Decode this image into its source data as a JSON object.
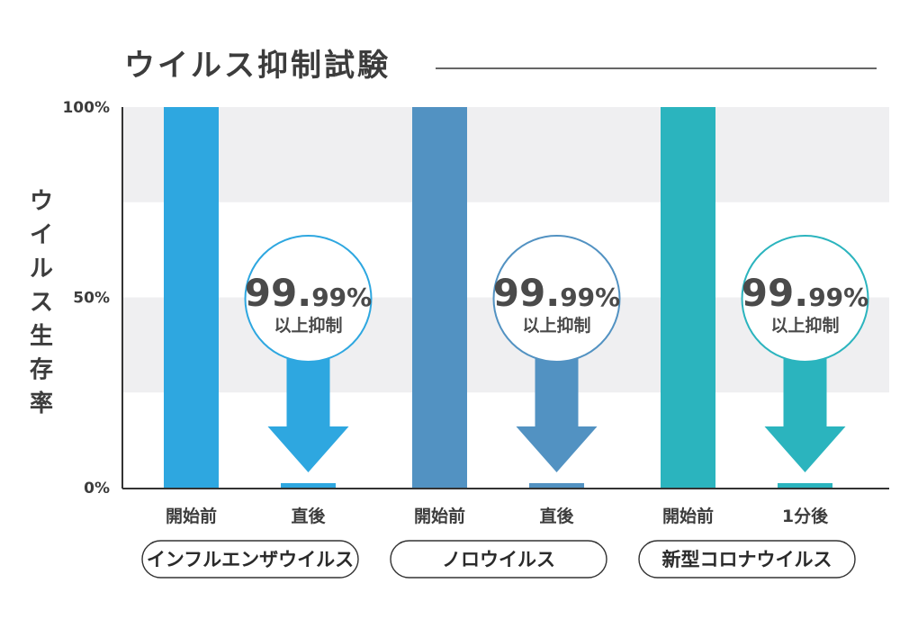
{
  "chart_data": {
    "type": "bar",
    "title": "ウイルス抑制試験",
    "ylabel": "ウイルス生存率",
    "ylim": [
      0,
      100
    ],
    "yticks": [
      {
        "value": 0,
        "label": "0%"
      },
      {
        "value": 50,
        "label": "50%"
      },
      {
        "value": 100,
        "label": "100%"
      }
    ],
    "bands": [
      [
        25,
        50
      ],
      [
        75,
        100
      ]
    ],
    "groups": [
      {
        "name": "インフルエンザウイルス",
        "color": "#2ea7e0",
        "bars": [
          {
            "category": "開始前",
            "value": 100
          },
          {
            "category": "直後",
            "value": 0.01
          }
        ],
        "badge": {
          "number_main": "99.",
          "number_decimal": "99%",
          "text": "以上抑制"
        }
      },
      {
        "name": "ノロウイルス",
        "color": "#5292c2",
        "bars": [
          {
            "category": "開始前",
            "value": 100
          },
          {
            "category": "直後",
            "value": 0.01
          }
        ],
        "badge": {
          "number_main": "99.",
          "number_decimal": "99%",
          "text": "以上抑制"
        }
      },
      {
        "name": "新型コロナウイルス",
        "color": "#2bb4be",
        "bars": [
          {
            "category": "開始前",
            "value": 100
          },
          {
            "category": "1分後",
            "value": 0.01
          }
        ],
        "badge": {
          "number_main": "99.",
          "number_decimal": "99%",
          "text": "以上抑制"
        }
      }
    ]
  }
}
